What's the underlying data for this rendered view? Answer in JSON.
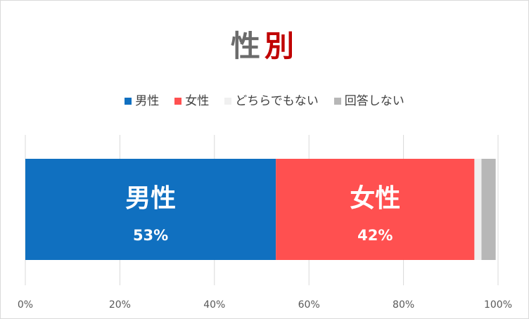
{
  "title_part_1": "性",
  "title_part_2": "別",
  "chart_data": {
    "type": "bar",
    "orientation": "horizontal",
    "stacked": "percent",
    "categories": [
      ""
    ],
    "series": [
      {
        "name": "男性",
        "values": [
          53
        ],
        "color": "#1070c0",
        "bar_label": "男性",
        "value_label": "53%"
      },
      {
        "name": "女性",
        "values": [
          42
        ],
        "color": "#ff5050",
        "bar_label": "女性",
        "value_label": "42%"
      },
      {
        "name": "どちらでもない",
        "values": [
          1.5
        ],
        "color": "#f0f0f0",
        "bar_label": "",
        "value_label": ""
      },
      {
        "name": "回答しない",
        "values": [
          3
        ],
        "color": "#b7b7b7",
        "bar_label": "",
        "value_label": ""
      }
    ],
    "xlim": [
      0,
      100
    ],
    "xticks": [
      "0%",
      "20%",
      "40%",
      "60%",
      "80%",
      "100%"
    ],
    "grid": true,
    "legend_position": "top"
  }
}
